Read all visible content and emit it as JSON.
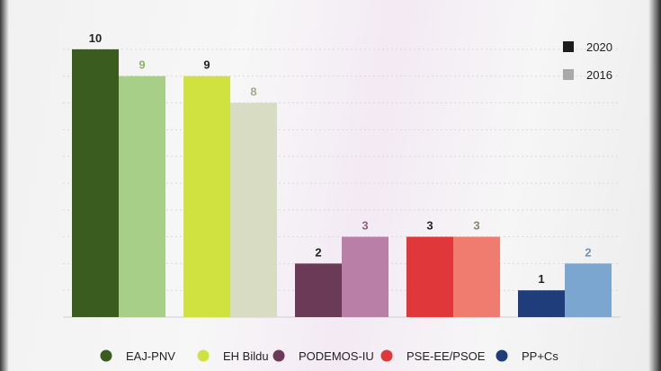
{
  "chart_data": {
    "type": "bar",
    "title": "",
    "xlabel": "",
    "ylabel": "",
    "ylim": [
      0,
      10.5
    ],
    "grid": true,
    "legend_position": "top-right",
    "categories": [
      "EAJ-PNV",
      "EH Bildu",
      "PODEMOS-IU",
      "PSE-EE/PSOE",
      "PP+Cs"
    ],
    "series": [
      {
        "name": "2020",
        "values": [
          10,
          9,
          2,
          3,
          1
        ]
      },
      {
        "name": "2016",
        "values": [
          9,
          8,
          3,
          3,
          2
        ]
      }
    ],
    "colors": {
      "2020": [
        "#3a5d1f",
        "#cfe23f",
        "#6b3a57",
        "#e0383a",
        "#1e3d7a"
      ],
      "2016": [
        "#a8cf88",
        "#d8dcc3",
        "#b97fa6",
        "#f07c70",
        "#7aa6cf"
      ]
    },
    "label_colors": {
      "2020": "#222222",
      "2016": [
        "#8fb46a",
        "#a7a98c",
        "#8f5c7f",
        "#7a8a6a",
        "#6c95ba"
      ]
    },
    "legend": [
      {
        "label": "2020",
        "color": "#1c1c1c"
      },
      {
        "label": "2016",
        "color": "#a9a9a9"
      }
    ],
    "party_legend": [
      {
        "label": "EAJ-PNV",
        "color": "#3a5d1f"
      },
      {
        "label": "EH Bildu",
        "color": "#cfe23f"
      },
      {
        "label": "PODEMOS-IU",
        "color": "#6b3a57"
      },
      {
        "label": "PSE-EE/PSOE",
        "color": "#e0383a"
      },
      {
        "label": "PP+Cs",
        "color": "#1e3d7a"
      }
    ]
  }
}
